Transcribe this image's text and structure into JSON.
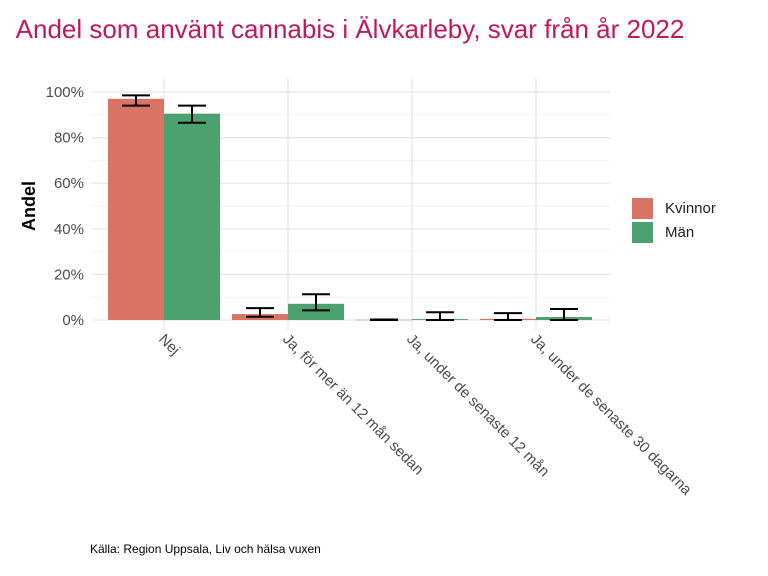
{
  "chart_data": {
    "type": "bar",
    "title": "Andel som använt cannabis i Älvkarleby, svar från år 2022",
    "ylabel": "Andel",
    "xlabel": "",
    "ylim": [
      0,
      1.04
    ],
    "yticks": [
      0,
      0.2,
      0.4,
      0.6,
      0.8,
      1.0
    ],
    "ytick_labels": [
      "0%",
      "20%",
      "40%",
      "60%",
      "80%",
      "100%"
    ],
    "categories": [
      "Nej",
      "Ja, för mer än 12 mån sedan",
      "Ja, under de senaste 12 mån",
      "Ja, under de senaste 30 dagarna"
    ],
    "series": [
      {
        "name": "Kvinnor",
        "color": "#d97464",
        "values": [
          0.97,
          0.026,
          0.001,
          0.005
        ],
        "err_low": [
          0.94,
          0.014,
          0.0,
          0.0
        ],
        "err_high": [
          0.985,
          0.052,
          0.002,
          0.03
        ]
      },
      {
        "name": "Män",
        "color": "#4ba26f",
        "values": [
          0.905,
          0.071,
          0.004,
          0.013
        ],
        "err_low": [
          0.865,
          0.042,
          0.0,
          0.0
        ],
        "err_high": [
          0.94,
          0.113,
          0.034,
          0.048
        ]
      }
    ],
    "grid": true,
    "legend": "right",
    "source": "Källa: Region Uppsala, Liv och hälsa vuxen"
  }
}
